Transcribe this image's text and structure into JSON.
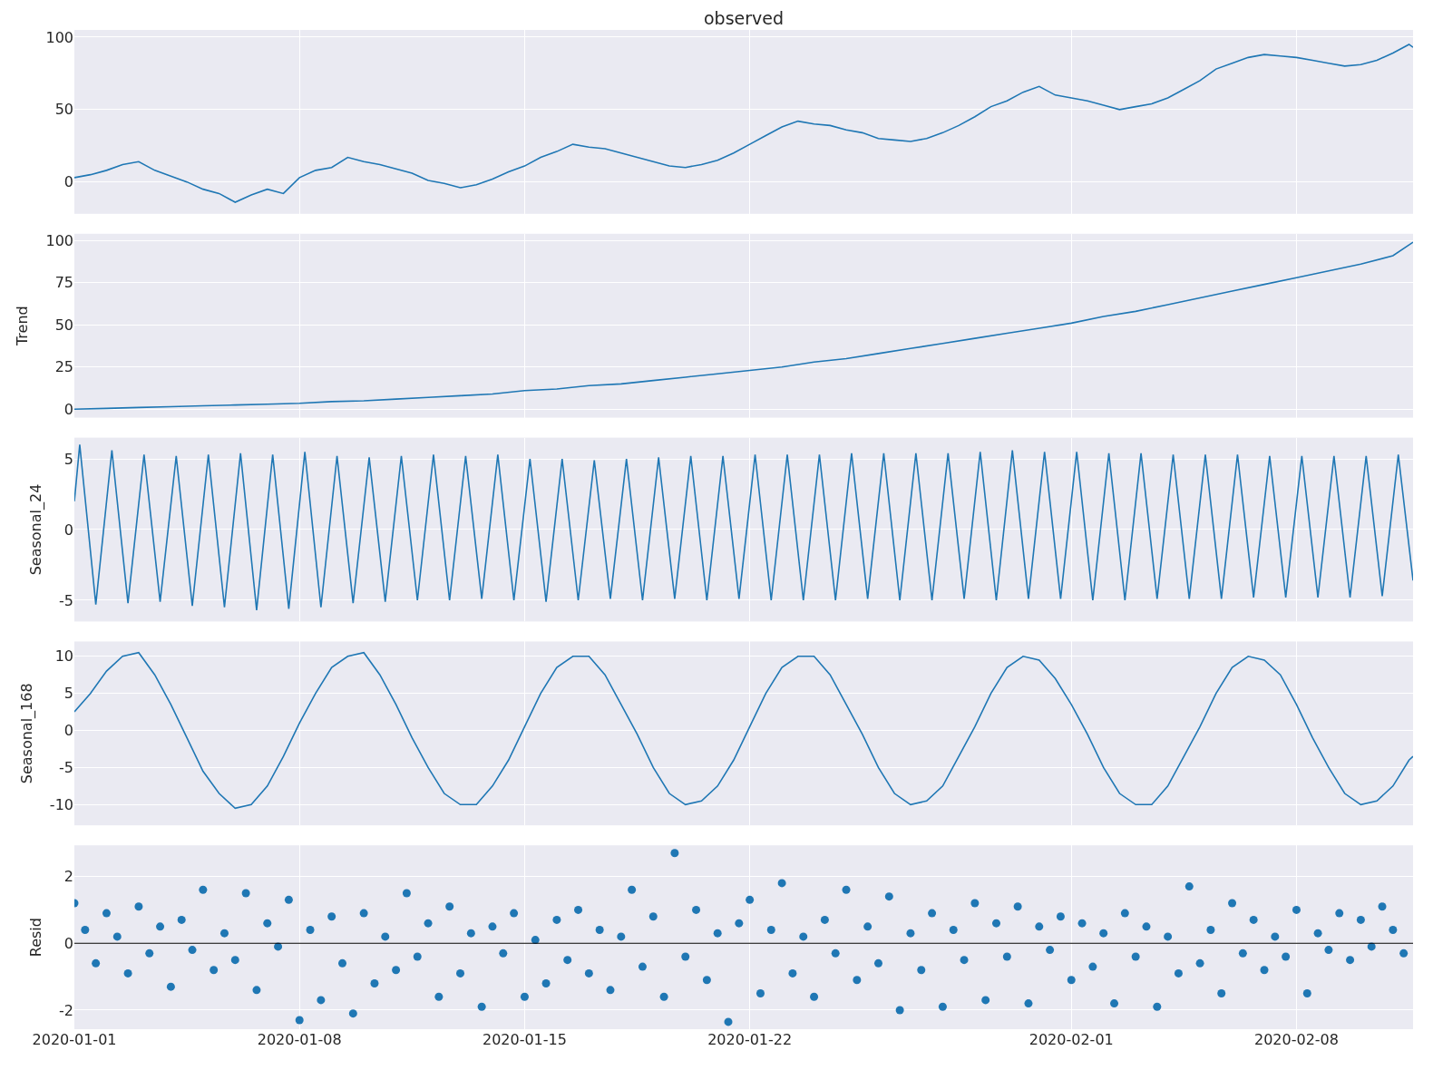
{
  "chart_data": [
    {
      "type": "line",
      "title": "observed",
      "tick_labels": "y",
      "grid": true,
      "xlim": [
        "2020-01-01T00:00",
        "2020-02-11T15:00"
      ],
      "xticks": [
        "2020-01-01",
        "2020-01-08",
        "2020-01-15",
        "2020-01-22",
        "2020-02-01",
        "2020-02-08"
      ],
      "ylim": [
        -22,
        105
      ],
      "yticks": [
        0,
        50,
        100
      ],
      "x": [
        "2020-01-01T00:00",
        "2020-01-01T12:00",
        "2020-01-02T00:00",
        "2020-01-02T12:00",
        "2020-01-03T00:00",
        "2020-01-03T12:00",
        "2020-01-04T00:00",
        "2020-01-04T12:00",
        "2020-01-05T00:00",
        "2020-01-05T12:00",
        "2020-01-06T00:00",
        "2020-01-06T12:00",
        "2020-01-07T00:00",
        "2020-01-07T12:00",
        "2020-01-08T00:00",
        "2020-01-08T12:00",
        "2020-01-09T00:00",
        "2020-01-09T12:00",
        "2020-01-10T00:00",
        "2020-01-10T12:00",
        "2020-01-11T00:00",
        "2020-01-11T12:00",
        "2020-01-12T00:00",
        "2020-01-12T12:00",
        "2020-01-13T00:00",
        "2020-01-13T12:00",
        "2020-01-14T00:00",
        "2020-01-14T12:00",
        "2020-01-15T00:00",
        "2020-01-15T12:00",
        "2020-01-16T00:00",
        "2020-01-16T12:00",
        "2020-01-17T00:00",
        "2020-01-17T12:00",
        "2020-01-18T00:00",
        "2020-01-18T12:00",
        "2020-01-19T00:00",
        "2020-01-19T12:00",
        "2020-01-20T00:00",
        "2020-01-20T12:00",
        "2020-01-21T00:00",
        "2020-01-21T12:00",
        "2020-01-22T00:00",
        "2020-01-22T12:00",
        "2020-01-23T00:00",
        "2020-01-23T12:00",
        "2020-01-24T00:00",
        "2020-01-24T12:00",
        "2020-01-25T00:00",
        "2020-01-25T12:00",
        "2020-01-26T00:00",
        "2020-01-26T12:00",
        "2020-01-27T00:00",
        "2020-01-27T12:00",
        "2020-01-28T00:00",
        "2020-01-28T12:00",
        "2020-01-29T00:00",
        "2020-01-29T12:00",
        "2020-01-30T00:00",
        "2020-01-30T12:00",
        "2020-01-31T00:00",
        "2020-01-31T12:00",
        "2020-02-01T00:00",
        "2020-02-01T12:00",
        "2020-02-02T00:00",
        "2020-02-02T12:00",
        "2020-02-03T00:00",
        "2020-02-03T12:00",
        "2020-02-04T00:00",
        "2020-02-04T12:00",
        "2020-02-05T00:00",
        "2020-02-05T12:00",
        "2020-02-06T00:00",
        "2020-02-06T12:00",
        "2020-02-07T00:00",
        "2020-02-07T12:00",
        "2020-02-08T00:00",
        "2020-02-08T12:00",
        "2020-02-09T00:00",
        "2020-02-09T12:00",
        "2020-02-10T00:00",
        "2020-02-10T12:00",
        "2020-02-11T00:00",
        "2020-02-11T12:00",
        "2020-02-11T15:00"
      ],
      "series": [
        {
          "color": "#1f77b4",
          "values": [
            3,
            5,
            8,
            12,
            14,
            8,
            4,
            0,
            -5,
            -8,
            -14,
            -9,
            -5,
            -8,
            3,
            8,
            10,
            17,
            14,
            12,
            9,
            6,
            1,
            -1,
            -4,
            -2,
            2,
            7,
            11,
            17,
            21,
            26,
            24,
            23,
            20,
            17,
            14,
            11,
            10,
            12,
            15,
            20,
            26,
            32,
            38,
            42,
            40,
            39,
            36,
            34,
            30,
            29,
            28,
            30,
            34,
            39,
            45,
            52,
            56,
            62,
            66,
            60,
            58,
            56,
            53,
            50,
            52,
            54,
            58,
            64,
            70,
            78,
            82,
            86,
            88,
            87,
            86,
            84,
            82,
            80,
            81,
            84,
            89,
            95,
            93
          ]
        }
      ]
    },
    {
      "type": "line",
      "ylabel": "Trend",
      "tick_labels": "y",
      "grid": true,
      "xlim": [
        "2020-01-01T00:00",
        "2020-02-11T15:00"
      ],
      "xticks": [
        "2020-01-01",
        "2020-01-08",
        "2020-01-15",
        "2020-01-22",
        "2020-02-01",
        "2020-02-08"
      ],
      "ylim": [
        -5,
        104
      ],
      "yticks": [
        0,
        25,
        50,
        75,
        100
      ],
      "x": [
        "2020-01-01T00:00",
        "2020-01-02T00:00",
        "2020-01-03T00:00",
        "2020-01-04T00:00",
        "2020-01-05T00:00",
        "2020-01-06T00:00",
        "2020-01-07T00:00",
        "2020-01-08T00:00",
        "2020-01-09T00:00",
        "2020-01-10T00:00",
        "2020-01-11T00:00",
        "2020-01-12T00:00",
        "2020-01-13T00:00",
        "2020-01-14T00:00",
        "2020-01-15T00:00",
        "2020-01-16T00:00",
        "2020-01-17T00:00",
        "2020-01-18T00:00",
        "2020-01-19T00:00",
        "2020-01-20T00:00",
        "2020-01-21T00:00",
        "2020-01-22T00:00",
        "2020-01-23T00:00",
        "2020-01-24T00:00",
        "2020-01-25T00:00",
        "2020-01-26T00:00",
        "2020-01-27T00:00",
        "2020-01-28T00:00",
        "2020-01-29T00:00",
        "2020-01-30T00:00",
        "2020-01-31T00:00",
        "2020-02-01T00:00",
        "2020-02-02T00:00",
        "2020-02-03T00:00",
        "2020-02-04T00:00",
        "2020-02-05T00:00",
        "2020-02-06T00:00",
        "2020-02-07T00:00",
        "2020-02-08T00:00",
        "2020-02-09T00:00",
        "2020-02-10T00:00",
        "2020-02-11T00:00",
        "2020-02-11T15:00"
      ],
      "series": [
        {
          "color": "#1f77b4",
          "values": [
            0,
            0.5,
            1,
            1.5,
            2,
            2.5,
            3,
            3.5,
            4.5,
            5,
            6,
            7,
            8,
            9,
            11,
            12,
            14,
            15,
            17,
            19,
            21,
            23,
            25,
            28,
            30,
            33,
            36,
            39,
            42,
            45,
            48,
            51,
            55,
            58,
            62,
            66,
            70,
            74,
            78,
            82,
            86,
            91,
            99
          ]
        }
      ]
    },
    {
      "type": "line",
      "ylabel": "Seasonal_24",
      "tick_labels": "y",
      "grid": true,
      "xlim": [
        "2020-01-01T00:00",
        "2020-02-11T15:00"
      ],
      "xticks": [
        "2020-01-01",
        "2020-01-08",
        "2020-01-15",
        "2020-01-22",
        "2020-02-01",
        "2020-02-08"
      ],
      "ylim": [
        -6.5,
        6.5
      ],
      "yticks": [
        -5,
        0,
        5
      ],
      "x": [
        "2020-01-01T00:00",
        "2020-01-01T04:00",
        "2020-01-01T16:00",
        "2020-01-02T04:00",
        "2020-01-02T16:00",
        "2020-01-03T04:00",
        "2020-01-03T16:00",
        "2020-01-04T04:00",
        "2020-01-04T16:00",
        "2020-01-05T04:00",
        "2020-01-05T16:00",
        "2020-01-06T04:00",
        "2020-01-06T16:00",
        "2020-01-07T04:00",
        "2020-01-07T16:00",
        "2020-01-08T04:00",
        "2020-01-08T16:00",
        "2020-01-09T04:00",
        "2020-01-09T16:00",
        "2020-01-10T04:00",
        "2020-01-10T16:00",
        "2020-01-11T04:00",
        "2020-01-11T16:00",
        "2020-01-12T04:00",
        "2020-01-12T16:00",
        "2020-01-13T04:00",
        "2020-01-13T16:00",
        "2020-01-14T04:00",
        "2020-01-14T16:00",
        "2020-01-15T04:00",
        "2020-01-15T16:00",
        "2020-01-16T04:00",
        "2020-01-16T16:00",
        "2020-01-17T04:00",
        "2020-01-17T16:00",
        "2020-01-18T04:00",
        "2020-01-18T16:00",
        "2020-01-19T04:00",
        "2020-01-19T16:00",
        "2020-01-20T04:00",
        "2020-01-20T16:00",
        "2020-01-21T04:00",
        "2020-01-21T16:00",
        "2020-01-22T04:00",
        "2020-01-22T16:00",
        "2020-01-23T04:00",
        "2020-01-23T16:00",
        "2020-01-24T04:00",
        "2020-01-24T16:00",
        "2020-01-25T04:00",
        "2020-01-25T16:00",
        "2020-01-26T04:00",
        "2020-01-26T16:00",
        "2020-01-27T04:00",
        "2020-01-27T16:00",
        "2020-01-28T04:00",
        "2020-01-28T16:00",
        "2020-01-29T04:00",
        "2020-01-29T16:00",
        "2020-01-30T04:00",
        "2020-01-30T16:00",
        "2020-01-31T04:00",
        "2020-01-31T16:00",
        "2020-02-01T04:00",
        "2020-02-01T16:00",
        "2020-02-02T04:00",
        "2020-02-02T16:00",
        "2020-02-03T04:00",
        "2020-02-03T16:00",
        "2020-02-04T04:00",
        "2020-02-04T16:00",
        "2020-02-05T04:00",
        "2020-02-05T16:00",
        "2020-02-06T04:00",
        "2020-02-06T16:00",
        "2020-02-07T04:00",
        "2020-02-07T16:00",
        "2020-02-08T04:00",
        "2020-02-08T16:00",
        "2020-02-09T04:00",
        "2020-02-09T16:00",
        "2020-02-10T04:00",
        "2020-02-10T16:00",
        "2020-02-11T04:00",
        "2020-02-11T15:00"
      ],
      "series": [
        {
          "color": "#1f77b4",
          "values": [
            2,
            6,
            -5.3,
            5.6,
            -5.2,
            5.3,
            -5.1,
            5.2,
            -5.4,
            5.3,
            -5.5,
            5.4,
            -5.7,
            5.3,
            -5.6,
            5.5,
            -5.5,
            5.2,
            -5.2,
            5.1,
            -5.1,
            5.2,
            -5,
            5.3,
            -5,
            5.2,
            -4.9,
            5.3,
            -5,
            5,
            -5.1,
            5,
            -5,
            4.9,
            -4.9,
            5,
            -5,
            5.1,
            -4.9,
            5.2,
            -5,
            5.2,
            -4.9,
            5.3,
            -5,
            5.3,
            -5,
            5.3,
            -5,
            5.4,
            -4.9,
            5.4,
            -5,
            5.4,
            -5,
            5.4,
            -4.9,
            5.5,
            -5,
            5.6,
            -4.9,
            5.5,
            -4.9,
            5.5,
            -5,
            5.4,
            -5,
            5.4,
            -4.9,
            5.3,
            -4.9,
            5.3,
            -4.9,
            5.3,
            -4.8,
            5.2,
            -4.8,
            5.2,
            -4.8,
            5.2,
            -4.8,
            5.2,
            -4.7,
            5.3,
            -3.6
          ]
        }
      ]
    },
    {
      "type": "line",
      "ylabel": "Seasonal_168",
      "tick_labels": "y",
      "grid": true,
      "xlim": [
        "2020-01-01T00:00",
        "2020-02-11T15:00"
      ],
      "xticks": [
        "2020-01-01",
        "2020-01-08",
        "2020-01-15",
        "2020-01-22",
        "2020-02-01",
        "2020-02-08"
      ],
      "ylim": [
        -12.8,
        12
      ],
      "yticks": [
        -10,
        -5,
        0,
        5,
        10
      ],
      "x": [
        "2020-01-01T00:00",
        "2020-01-01T12:00",
        "2020-01-02T00:00",
        "2020-01-02T12:00",
        "2020-01-03T00:00",
        "2020-01-03T12:00",
        "2020-01-04T00:00",
        "2020-01-04T12:00",
        "2020-01-05T00:00",
        "2020-01-05T12:00",
        "2020-01-06T00:00",
        "2020-01-06T12:00",
        "2020-01-07T00:00",
        "2020-01-07T12:00",
        "2020-01-08T00:00",
        "2020-01-08T12:00",
        "2020-01-09T00:00",
        "2020-01-09T12:00",
        "2020-01-10T00:00",
        "2020-01-10T12:00",
        "2020-01-11T00:00",
        "2020-01-11T12:00",
        "2020-01-12T00:00",
        "2020-01-12T12:00",
        "2020-01-13T00:00",
        "2020-01-13T12:00",
        "2020-01-14T00:00",
        "2020-01-14T12:00",
        "2020-01-15T00:00",
        "2020-01-15T12:00",
        "2020-01-16T00:00",
        "2020-01-16T12:00",
        "2020-01-17T00:00",
        "2020-01-17T12:00",
        "2020-01-18T00:00",
        "2020-01-18T12:00",
        "2020-01-19T00:00",
        "2020-01-19T12:00",
        "2020-01-20T00:00",
        "2020-01-20T12:00",
        "2020-01-21T00:00",
        "2020-01-21T12:00",
        "2020-01-22T00:00",
        "2020-01-22T12:00",
        "2020-01-23T00:00",
        "2020-01-23T12:00",
        "2020-01-24T00:00",
        "2020-01-24T12:00",
        "2020-01-25T00:00",
        "2020-01-25T12:00",
        "2020-01-26T00:00",
        "2020-01-26T12:00",
        "2020-01-27T00:00",
        "2020-01-27T12:00",
        "2020-01-28T00:00",
        "2020-01-28T12:00",
        "2020-01-29T00:00",
        "2020-01-29T12:00",
        "2020-01-30T00:00",
        "2020-01-30T12:00",
        "2020-01-31T00:00",
        "2020-01-31T12:00",
        "2020-02-01T00:00",
        "2020-02-01T12:00",
        "2020-02-02T00:00",
        "2020-02-02T12:00",
        "2020-02-03T00:00",
        "2020-02-03T12:00",
        "2020-02-04T00:00",
        "2020-02-04T12:00",
        "2020-02-05T00:00",
        "2020-02-05T12:00",
        "2020-02-06T00:00",
        "2020-02-06T12:00",
        "2020-02-07T00:00",
        "2020-02-07T12:00",
        "2020-02-08T00:00",
        "2020-02-08T12:00",
        "2020-02-09T00:00",
        "2020-02-09T12:00",
        "2020-02-10T00:00",
        "2020-02-10T12:00",
        "2020-02-11T00:00",
        "2020-02-11T12:00",
        "2020-02-11T15:00"
      ],
      "series": [
        {
          "color": "#1f77b4",
          "values": [
            2.5,
            5,
            8,
            10,
            10.5,
            7.5,
            3.5,
            -1,
            -5.5,
            -8.5,
            -10.5,
            -10,
            -7.5,
            -3.5,
            1,
            5,
            8.5,
            10,
            10.5,
            7.5,
            3.5,
            -1,
            -5,
            -8.5,
            -10,
            -10,
            -7.5,
            -4,
            0.5,
            5,
            8.5,
            10,
            10,
            7.5,
            3.5,
            -0.5,
            -5,
            -8.5,
            -10,
            -9.5,
            -7.5,
            -4,
            0.5,
            5,
            8.5,
            10,
            10,
            7.5,
            3.5,
            -0.5,
            -5,
            -8.5,
            -10,
            -9.5,
            -7.5,
            -3.5,
            0.5,
            5,
            8.5,
            10,
            9.5,
            7,
            3.5,
            -0.5,
            -5,
            -8.5,
            -10,
            -10,
            -7.5,
            -3.5,
            0.5,
            5,
            8.5,
            10,
            9.5,
            7.5,
            3.5,
            -1,
            -5,
            -8.5,
            -10,
            -9.5,
            -7.5,
            -4,
            -3.5
          ]
        }
      ]
    },
    {
      "type": "scatter",
      "ylabel": "Resid",
      "marker": "circle",
      "grid": true,
      "xlim": [
        "2020-01-01T00:00",
        "2020-02-11T15:00"
      ],
      "xticks": [
        "2020-01-01",
        "2020-01-08",
        "2020-01-15",
        "2020-01-22",
        "2020-02-01",
        "2020-02-08"
      ],
      "ylim": [
        -2.57,
        2.93
      ],
      "yticks": [
        -2,
        0,
        2
      ],
      "ref_lines": [
        {
          "axis": "y",
          "value": 0,
          "color": "#000000"
        }
      ],
      "x": [
        "2020-01-01T00:00",
        "2020-01-01T08:00",
        "2020-01-01T16:00",
        "2020-01-02T00:00",
        "2020-01-02T08:00",
        "2020-01-02T16:00",
        "2020-01-03T00:00",
        "2020-01-03T08:00",
        "2020-01-03T16:00",
        "2020-01-04T00:00",
        "2020-01-04T08:00",
        "2020-01-04T16:00",
        "2020-01-05T00:00",
        "2020-01-05T08:00",
        "2020-01-05T16:00",
        "2020-01-06T00:00",
        "2020-01-06T08:00",
        "2020-01-06T16:00",
        "2020-01-07T00:00",
        "2020-01-07T08:00",
        "2020-01-07T16:00",
        "2020-01-08T00:00",
        "2020-01-08T08:00",
        "2020-01-08T16:00",
        "2020-01-09T00:00",
        "2020-01-09T08:00",
        "2020-01-09T16:00",
        "2020-01-10T00:00",
        "2020-01-10T08:00",
        "2020-01-10T16:00",
        "2020-01-11T00:00",
        "2020-01-11T08:00",
        "2020-01-11T16:00",
        "2020-01-12T00:00",
        "2020-01-12T08:00",
        "2020-01-12T16:00",
        "2020-01-13T00:00",
        "2020-01-13T08:00",
        "2020-01-13T16:00",
        "2020-01-14T00:00",
        "2020-01-14T08:00",
        "2020-01-14T16:00",
        "2020-01-15T00:00",
        "2020-01-15T08:00",
        "2020-01-15T16:00",
        "2020-01-16T00:00",
        "2020-01-16T08:00",
        "2020-01-16T16:00",
        "2020-01-17T00:00",
        "2020-01-17T08:00",
        "2020-01-17T16:00",
        "2020-01-18T00:00",
        "2020-01-18T08:00",
        "2020-01-18T16:00",
        "2020-01-19T00:00",
        "2020-01-19T08:00",
        "2020-01-19T16:00",
        "2020-01-20T00:00",
        "2020-01-20T08:00",
        "2020-01-20T16:00",
        "2020-01-21T00:00",
        "2020-01-21T08:00",
        "2020-01-21T16:00",
        "2020-01-22T00:00",
        "2020-01-22T08:00",
        "2020-01-22T16:00",
        "2020-01-23T00:00",
        "2020-01-23T08:00",
        "2020-01-23T16:00",
        "2020-01-24T00:00",
        "2020-01-24T08:00",
        "2020-01-24T16:00",
        "2020-01-25T00:00",
        "2020-01-25T08:00",
        "2020-01-25T16:00",
        "2020-01-26T00:00",
        "2020-01-26T08:00",
        "2020-01-26T16:00",
        "2020-01-27T00:00",
        "2020-01-27T08:00",
        "2020-01-27T16:00",
        "2020-01-28T00:00",
        "2020-01-28T08:00",
        "2020-01-28T16:00",
        "2020-01-29T00:00",
        "2020-01-29T08:00",
        "2020-01-29T16:00",
        "2020-01-30T00:00",
        "2020-01-30T08:00",
        "2020-01-30T16:00",
        "2020-01-31T00:00",
        "2020-01-31T08:00",
        "2020-01-31T16:00",
        "2020-02-01T00:00",
        "2020-02-01T08:00",
        "2020-02-01T16:00",
        "2020-02-02T00:00",
        "2020-02-02T08:00",
        "2020-02-02T16:00",
        "2020-02-03T00:00",
        "2020-02-03T08:00",
        "2020-02-03T16:00",
        "2020-02-04T00:00",
        "2020-02-04T08:00",
        "2020-02-04T16:00",
        "2020-02-05T00:00",
        "2020-02-05T08:00",
        "2020-02-05T16:00",
        "2020-02-06T00:00",
        "2020-02-06T08:00",
        "2020-02-06T16:00",
        "2020-02-07T00:00",
        "2020-02-07T08:00",
        "2020-02-07T16:00",
        "2020-02-08T00:00",
        "2020-02-08T08:00",
        "2020-02-08T16:00",
        "2020-02-09T00:00",
        "2020-02-09T08:00",
        "2020-02-09T16:00",
        "2020-02-10T00:00",
        "2020-02-10T08:00",
        "2020-02-10T16:00",
        "2020-02-11T00:00",
        "2020-02-11T08:00"
      ],
      "series": [
        {
          "color": "#1f77b4",
          "values": [
            1.2,
            0.4,
            -0.6,
            0.9,
            0.2,
            -0.9,
            1.1,
            -0.3,
            0.5,
            -1.3,
            0.7,
            -0.2,
            1.6,
            -0.8,
            0.3,
            -0.5,
            1.5,
            -1.4,
            0.6,
            -0.1,
            1.3,
            -2.3,
            0.4,
            -1.7,
            0.8,
            -0.6,
            -2.1,
            0.9,
            -1.2,
            0.2,
            -0.8,
            1.5,
            -0.4,
            0.6,
            -1.6,
            1.1,
            -0.9,
            0.3,
            -1.9,
            0.5,
            -0.3,
            0.9,
            -1.6,
            0.1,
            -1.2,
            0.7,
            -0.5,
            1,
            -0.9,
            0.4,
            -1.4,
            0.2,
            1.6,
            -0.7,
            0.8,
            -1.6,
            2.7,
            -0.4,
            1,
            -1.1,
            0.3,
            -2.35,
            0.6,
            1.3,
            -1.5,
            0.4,
            1.8,
            -0.9,
            0.2,
            -1.6,
            0.7,
            -0.3,
            1.6,
            -1.1,
            0.5,
            -0.6,
            1.4,
            -2,
            0.3,
            -0.8,
            0.9,
            -1.9,
            0.4,
            -0.5,
            1.2,
            -1.7,
            0.6,
            -0.4,
            1.1,
            -1.8,
            0.5,
            -0.2,
            0.8,
            -1.1,
            0.6,
            -0.7,
            0.3,
            -1.8,
            0.9,
            -0.4,
            0.5,
            -1.9,
            0.2,
            -0.9,
            1.7,
            -0.6,
            0.4,
            -1.5,
            1.2,
            -0.3,
            0.7,
            -0.8,
            0.2,
            -0.4,
            1,
            -1.5,
            0.3,
            -0.2,
            0.9,
            -0.5,
            0.7,
            -0.1,
            1.1,
            0.4,
            -0.3
          ]
        }
      ]
    }
  ]
}
